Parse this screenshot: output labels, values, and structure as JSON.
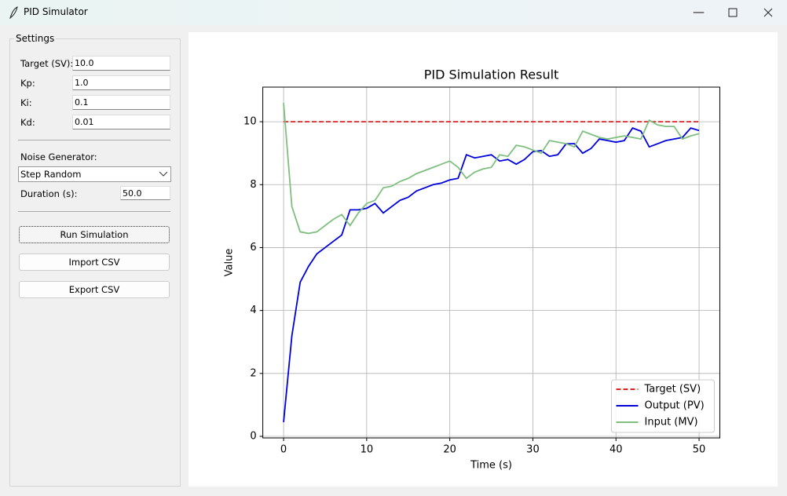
{
  "window": {
    "title": "PID Simulator"
  },
  "settings": {
    "title": "Settings",
    "fields": [
      {
        "label": "Target (SV):",
        "value": "10.0"
      },
      {
        "label": "Kp:",
        "value": "1.0"
      },
      {
        "label": "Ki:",
        "value": "0.1"
      },
      {
        "label": "Kd:",
        "value": "0.01"
      }
    ],
    "noise_label": "Noise Generator:",
    "noise_value": "Step Random",
    "duration_label": "Duration (s):",
    "duration_value": "50.0",
    "buttons": [
      "Run Simulation",
      "Import CSV",
      "Export CSV"
    ]
  },
  "chart_data": {
    "type": "line",
    "title": "PID Simulation Result",
    "x_label": "Time (s)",
    "y_label": "Value",
    "x": [
      0,
      1,
      2,
      3,
      4,
      5,
      6,
      7,
      8,
      9,
      10,
      11,
      12,
      13,
      14,
      15,
      16,
      17,
      18,
      19,
      20,
      21,
      22,
      23,
      24,
      25,
      26,
      27,
      28,
      29,
      30,
      31,
      32,
      33,
      34,
      35,
      36,
      37,
      38,
      39,
      40,
      41,
      42,
      43,
      44,
      45,
      46,
      47,
      48,
      49,
      50
    ],
    "series": [
      {
        "name": "Target (SV)",
        "color": "#d62728",
        "dashed": true,
        "values": [
          10,
          10,
          10,
          10,
          10,
          10,
          10,
          10,
          10,
          10,
          10,
          10,
          10,
          10,
          10,
          10,
          10,
          10,
          10,
          10,
          10,
          10,
          10,
          10,
          10,
          10,
          10,
          10,
          10,
          10,
          10,
          10,
          10,
          10,
          10,
          10,
          10,
          10,
          10,
          10,
          10,
          10,
          10,
          10,
          10,
          10,
          10,
          10,
          10,
          10,
          10
        ]
      },
      {
        "name": "Output (PV)",
        "color": "#0000dd",
        "values": [
          0.45,
          3.2,
          4.9,
          5.4,
          5.8,
          6.0,
          6.2,
          6.4,
          7.2,
          7.2,
          7.25,
          7.4,
          7.1,
          7.3,
          7.5,
          7.6,
          7.8,
          7.9,
          8.0,
          8.05,
          8.15,
          8.2,
          8.95,
          8.85,
          8.9,
          8.95,
          8.75,
          8.8,
          8.65,
          8.8,
          9.05,
          9.08,
          8.9,
          8.95,
          9.3,
          9.3,
          9.0,
          9.15,
          9.45,
          9.4,
          9.35,
          9.4,
          9.8,
          9.7,
          9.2,
          9.3,
          9.4,
          9.45,
          9.5,
          9.8,
          9.72
        ]
      },
      {
        "name": "Input (MV)",
        "color": "#7fbf7f",
        "values": [
          10.6,
          7.3,
          6.5,
          6.45,
          6.5,
          6.7,
          6.9,
          7.05,
          6.7,
          7.1,
          7.4,
          7.5,
          7.9,
          7.95,
          8.1,
          8.2,
          8.35,
          8.45,
          8.55,
          8.65,
          8.75,
          8.55,
          8.2,
          8.4,
          8.5,
          8.55,
          8.95,
          8.9,
          9.25,
          9.2,
          9.1,
          9.0,
          9.4,
          9.35,
          9.3,
          9.2,
          9.7,
          9.6,
          9.5,
          9.45,
          9.5,
          9.55,
          9.5,
          9.45,
          10.05,
          9.9,
          9.85,
          9.85,
          9.45,
          9.55,
          9.62
        ]
      }
    ],
    "xlim": [
      -2.5,
      52.5
    ],
    "xticks": [
      0,
      10,
      20,
      30,
      40,
      50
    ],
    "ylim": [
      -0.05,
      11.1
    ],
    "yticks": [
      0,
      2,
      4,
      6,
      8,
      10
    ],
    "grid": true,
    "legend": "lower right"
  }
}
